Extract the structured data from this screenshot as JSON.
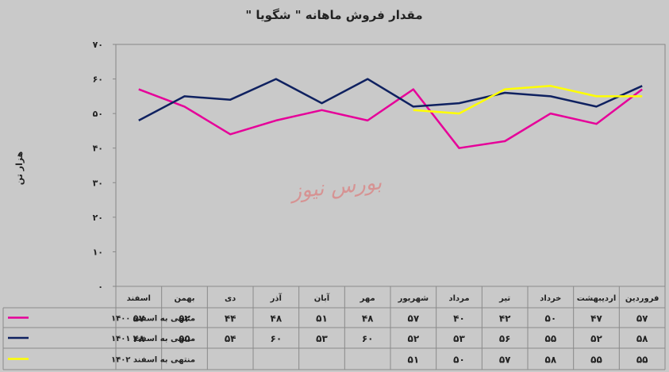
{
  "chart_data": {
    "type": "line",
    "title": "مقدار فروش ماهانه \" شگویا \"",
    "ylabel": "هزار تن",
    "ylim": [
      0,
      70
    ],
    "yticks": [
      "۰",
      "۱۰",
      "۲۰",
      "۳۰",
      "۴۰",
      "۵۰",
      "۶۰",
      "۷۰"
    ],
    "categories": [
      "اسفند",
      "بهمن",
      "دی",
      "آذر",
      "آبان",
      "مهر",
      "شهریور",
      "مرداد",
      "تیر",
      "خرداد",
      "اردیبهشت",
      "فروردین"
    ],
    "series": [
      {
        "name": "منتهی به اسفند ۱۴۰۰",
        "color": "#e60099",
        "values": [
          57,
          52,
          44,
          48,
          51,
          48,
          57,
          40,
          42,
          50,
          47,
          57
        ],
        "labels": [
          "۵۷",
          "۵۲",
          "۴۴",
          "۴۸",
          "۵۱",
          "۴۸",
          "۵۷",
          "۴۰",
          "۴۲",
          "۵۰",
          "۴۷",
          "۵۷"
        ]
      },
      {
        "name": "منتهی به اسفند ۱۴۰۱",
        "color": "#0f2160",
        "values": [
          48,
          55,
          54,
          60,
          53,
          60,
          52,
          53,
          56,
          55,
          52,
          58
        ],
        "labels": [
          "۴۸",
          "۵۵",
          "۵۴",
          "۶۰",
          "۵۳",
          "۶۰",
          "۵۲",
          "۵۳",
          "۵۶",
          "۵۵",
          "۵۲",
          "۵۸"
        ]
      },
      {
        "name": "منتهی به اسفند ۱۴۰۲",
        "color": "#ffff00",
        "values": [
          null,
          null,
          null,
          null,
          null,
          null,
          51,
          50,
          57,
          58,
          55,
          55
        ],
        "labels": [
          "",
          "",
          "",
          "",
          "",
          "",
          "۵۱",
          "۵۰",
          "۵۷",
          "۵۸",
          "۵۵",
          "۵۵"
        ]
      }
    ],
    "grid": false,
    "legend": "table-left"
  },
  "watermark": "بورس نیوز"
}
